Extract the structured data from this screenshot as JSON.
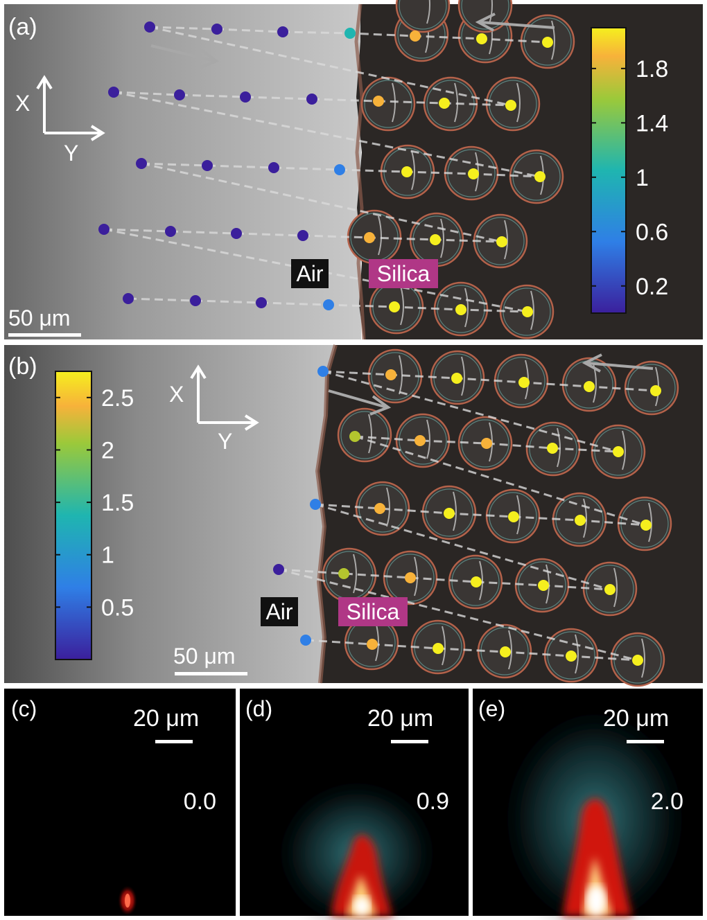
{
  "panel_a": {
    "label": "(a)",
    "axis_x": "X",
    "axis_y": "Y",
    "scale_bar": "50 μm",
    "medium_left": "Air",
    "medium_right": "Silica",
    "colorbar_ticks": [
      "1.8",
      "1.4",
      "1",
      "0.6",
      "0.2"
    ],
    "colorbar_values": [
      1.8,
      1.4,
      1.0,
      0.6,
      0.2
    ],
    "colorbar_range": [
      0.0,
      2.1
    ]
  },
  "panel_b": {
    "label": "(b)",
    "axis_x": "X",
    "axis_y": "Y",
    "scale_bar": "50 μm",
    "medium_left": "Air",
    "medium_right": "Silica",
    "colorbar_ticks": [
      "2.5",
      "2",
      "1.5",
      "1",
      "0.5"
    ],
    "colorbar_values": [
      2.5,
      2.0,
      1.5,
      1.0,
      0.5
    ],
    "colorbar_range": [
      0.0,
      2.75
    ]
  },
  "panel_c": {
    "label": "(c)",
    "scale_bar": "20 μm",
    "value": "0.0"
  },
  "panel_d": {
    "label": "(d)",
    "scale_bar": "20 μm",
    "value": "0.9"
  },
  "panel_e": {
    "label": "(e)",
    "scale_bar": "20 μm",
    "value": "2.0"
  },
  "colors": {
    "cmap_low": "#3b1f9c",
    "cmap_mid": "#1fb5b0",
    "cmap_high": "#f5ef1e",
    "highlight_label": "#b03786"
  }
}
